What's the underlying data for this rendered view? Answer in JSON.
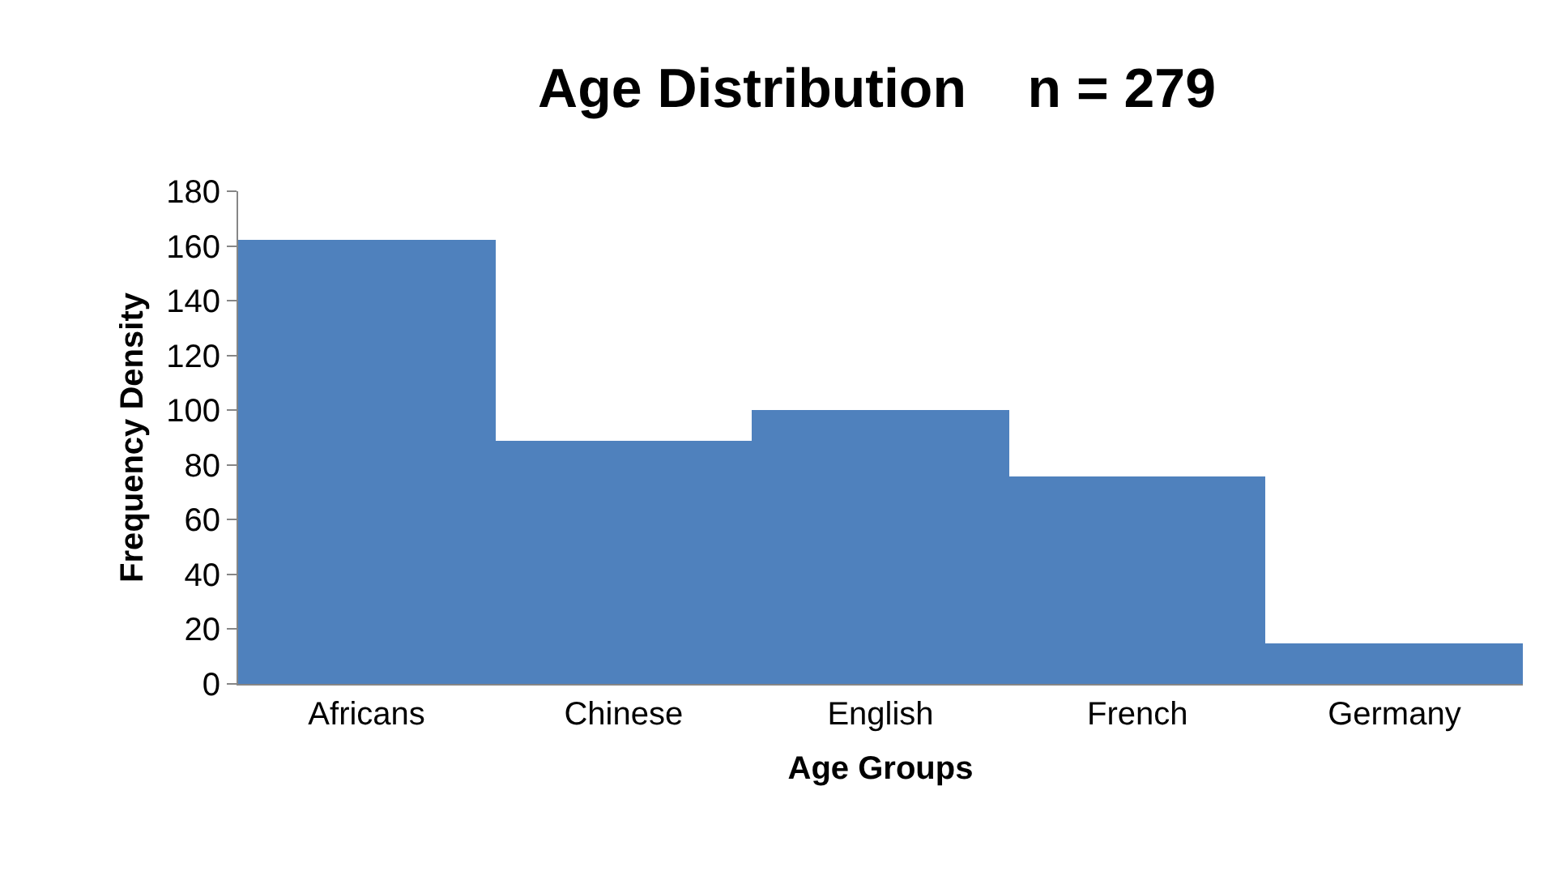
{
  "chart_data": {
    "type": "bar",
    "title": "Age Distribution    n = 279",
    "xlabel": "Age Groups",
    "ylabel": "Frequency Density",
    "categories": [
      "Africans",
      "Chinese",
      "English",
      "French",
      "Germany"
    ],
    "values": [
      162,
      89,
      100,
      76,
      15
    ],
    "color": "#4f81bd",
    "ylim": [
      0,
      180
    ],
    "yticks": [
      0,
      20,
      40,
      60,
      80,
      100,
      120,
      140,
      160,
      180
    ]
  }
}
